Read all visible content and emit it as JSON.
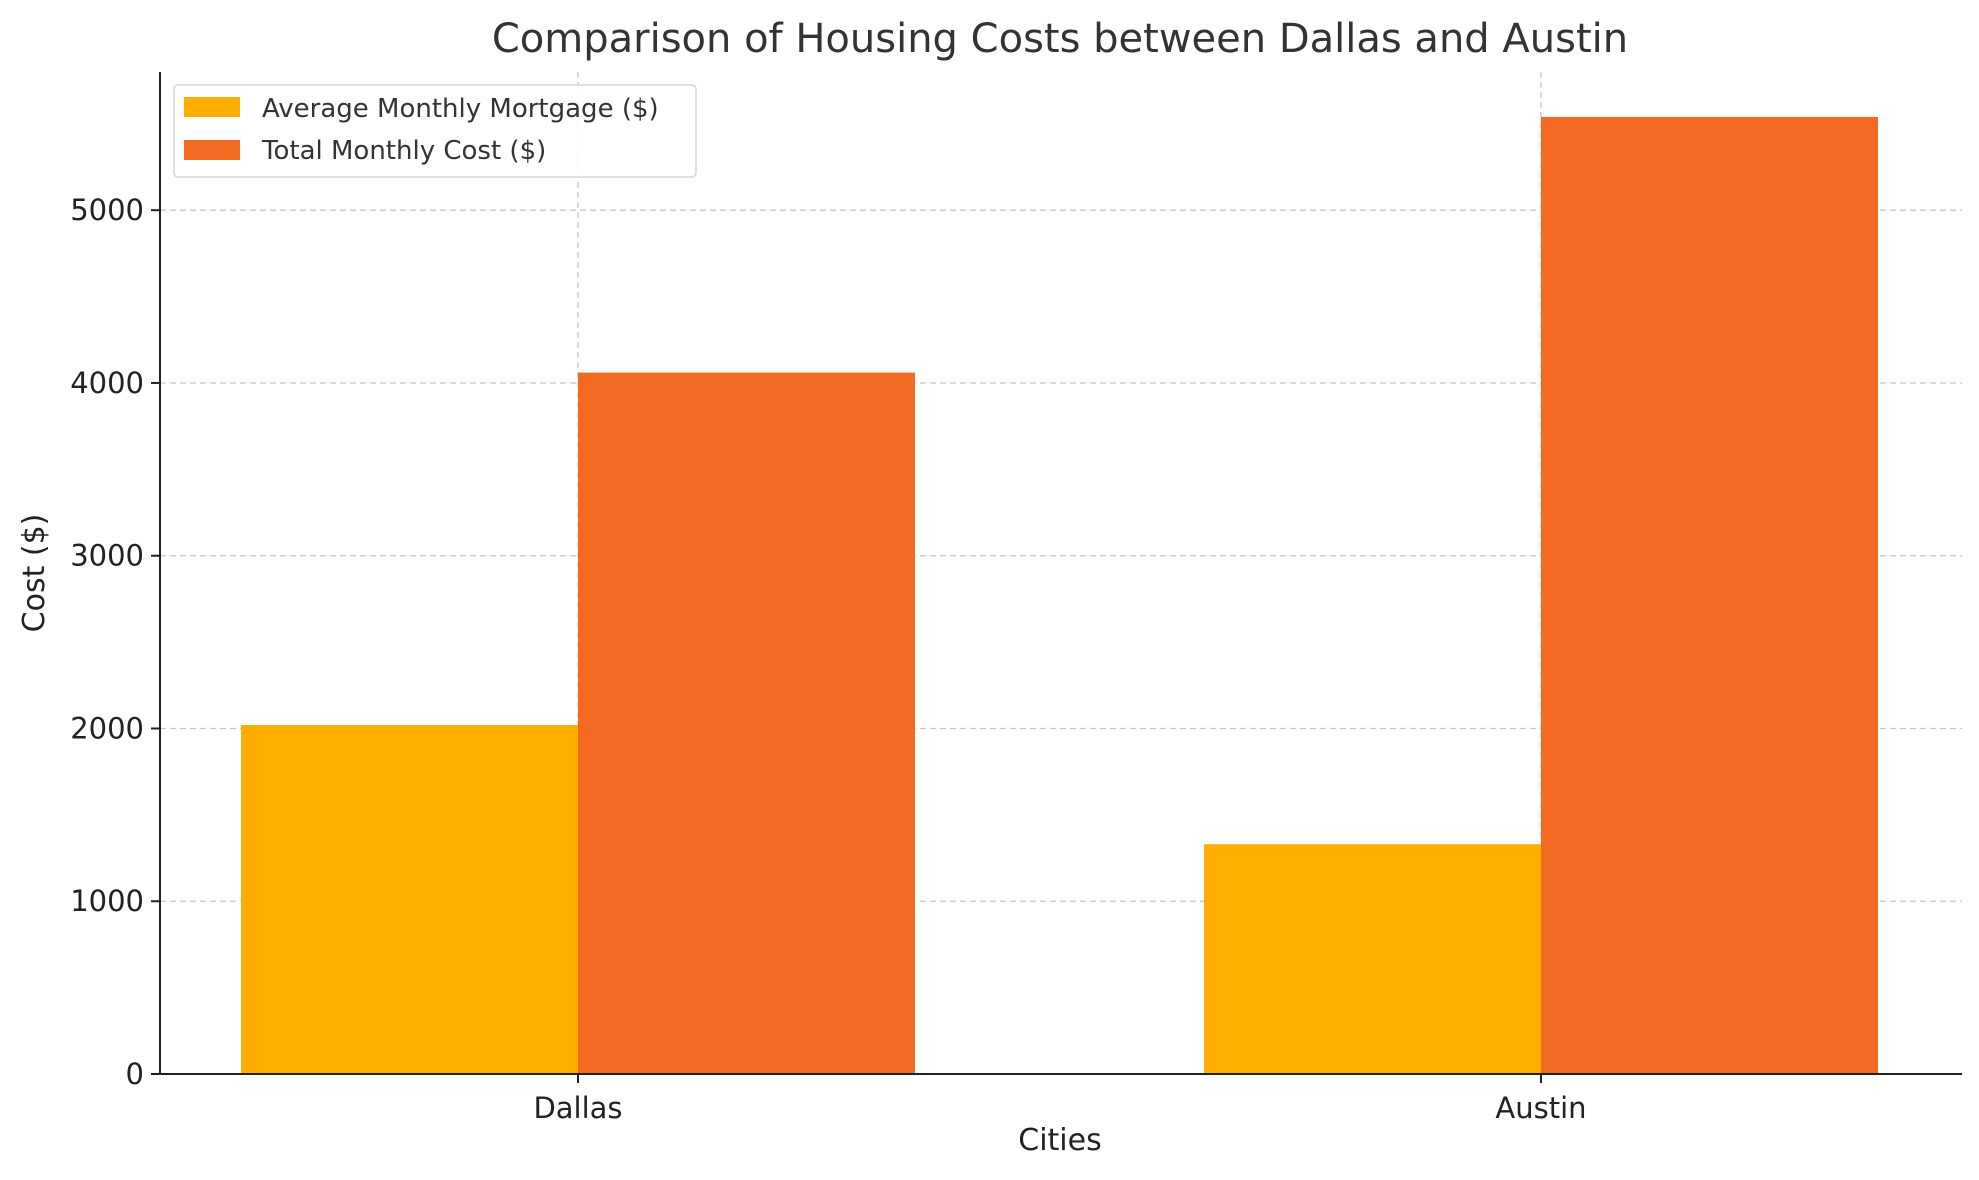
{
  "chart_data": {
    "type": "bar",
    "title": "Comparison of Housing Costs between Dallas and Austin",
    "xlabel": "Cities",
    "ylabel": "Cost ($)",
    "categories": [
      "Dallas",
      "Austin"
    ],
    "series": [
      {
        "name": "Average Monthly Mortgage ($)",
        "values": [
          2020,
          1330
        ],
        "color": "#FFAE00"
      },
      {
        "name": "Total Monthly Cost ($)",
        "values": [
          4060,
          5540
        ],
        "color": "#F36A22"
      }
    ],
    "ylim": [
      0,
      5800
    ],
    "yticks": [
      0,
      1000,
      2000,
      3000,
      4000,
      5000
    ],
    "grid": true,
    "legend_position": "top-left"
  }
}
